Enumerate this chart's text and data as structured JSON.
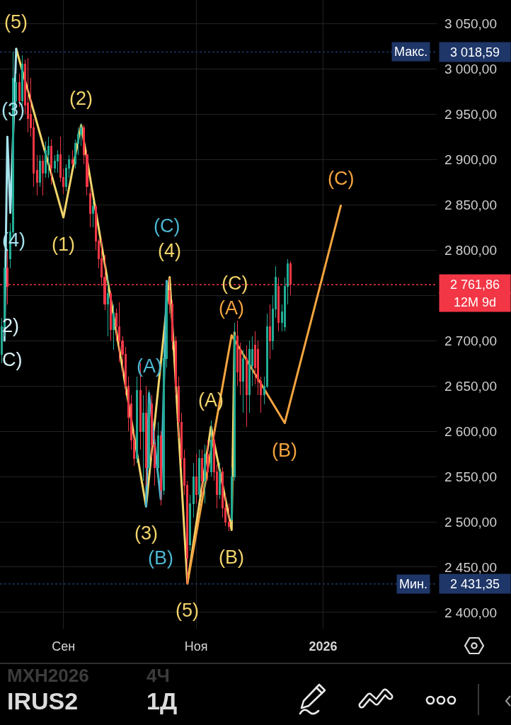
{
  "chart_data": {
    "type": "candlestick",
    "categories": [
      null,
      null,
      null,
      null,
      null,
      null,
      null,
      null,
      null,
      null,
      null,
      null,
      null,
      null,
      null,
      null,
      null,
      null,
      null,
      null,
      null,
      "Сен",
      null,
      null,
      null,
      null,
      null,
      null,
      null,
      null,
      null,
      null,
      null,
      null,
      null,
      null,
      null,
      null,
      null,
      null,
      null,
      null,
      null,
      null,
      null,
      null,
      null,
      null,
      null,
      null,
      null,
      null,
      null,
      null,
      null,
      null,
      null,
      null,
      null,
      null,
      null,
      null,
      null,
      null,
      null,
      null,
      "Ноя",
      null,
      null,
      null,
      null,
      null,
      null,
      null,
      null,
      null,
      null,
      null,
      null,
      null,
      null,
      null,
      null,
      null,
      null,
      null,
      null,
      null,
      null,
      null,
      null,
      null,
      null,
      null,
      null,
      null,
      null,
      null,
      null,
      null,
      null,
      null,
      null,
      null,
      null,
      null,
      null,
      null,
      null,
      "2026",
      null,
      null,
      null,
      null,
      null,
      null,
      null,
      null,
      null,
      null,
      null,
      null,
      null,
      null,
      null,
      null,
      null,
      null,
      null,
      null,
      null,
      null,
      null,
      null,
      null,
      null,
      null,
      null,
      null,
      null,
      null,
      null,
      null,
      null,
      null,
      null,
      null,
      null
    ],
    "ohlc": [
      [
        2685,
        2725,
        2675,
        2715
      ],
      [
        2715,
        2790,
        2705,
        2780
      ],
      [
        2780,
        2800,
        2740,
        2760
      ],
      [
        2790,
        2830,
        2780,
        2820
      ],
      [
        2820,
        3018.59,
        2815,
        2990
      ],
      [
        2965,
        2995,
        2955,
        2985
      ],
      [
        2985,
        2995,
        2958,
        2965
      ],
      [
        2965,
        3015,
        2960,
        3005
      ],
      [
        3005,
        3010,
        2950,
        2960
      ],
      [
        2962,
        3012,
        2930,
        2945
      ],
      [
        2950,
        2990,
        2925,
        2935
      ],
      [
        2935,
        2945,
        2870,
        2885
      ],
      [
        2888,
        2905,
        2860,
        2875
      ],
      [
        2875,
        2905,
        2870,
        2898
      ],
      [
        2898,
        2905,
        2860,
        2885
      ],
      [
        2885,
        2920,
        2880,
        2910
      ],
      [
        2905,
        2925,
        2880,
        2915
      ],
      [
        2915,
        2922,
        2872,
        2890
      ],
      [
        2890,
        2905,
        2885,
        2898
      ],
      [
        2898,
        2910,
        2885,
        2905
      ],
      [
        2905,
        2925,
        2875,
        2880
      ],
      [
        2880,
        2890,
        2862,
        2870
      ],
      [
        2870,
        2895,
        2865,
        2890
      ],
      [
        2890,
        2905,
        2880,
        2900
      ],
      [
        2900,
        2910,
        2893,
        2895
      ],
      [
        2895,
        2922,
        2890,
        2918
      ],
      [
        2918,
        2935,
        2905,
        2928
      ],
      [
        2928,
        2940,
        2915,
        2935
      ],
      [
        2935,
        2938,
        2895,
        2905
      ],
      [
        2905,
        2910,
        2860,
        2870
      ],
      [
        2862,
        2868,
        2825,
        2840
      ],
      [
        2840,
        2855,
        2825,
        2848
      ],
      [
        2848,
        2850,
        2800,
        2810
      ],
      [
        2810,
        2812,
        2780,
        2790
      ],
      [
        2790,
        2812,
        2760,
        2770
      ],
      [
        2770,
        2795,
        2734,
        2740
      ],
      [
        2740,
        2772,
        2705,
        2752
      ],
      [
        2752,
        2755,
        2700,
        2712
      ],
      [
        2712,
        2740,
        2690,
        2730
      ],
      [
        2730,
        2735,
        2700,
        2715
      ],
      [
        2715,
        2742,
        2676,
        2700
      ],
      [
        2700,
        2705,
        2662,
        2685
      ],
      [
        2685,
        2693,
        2640,
        2650
      ],
      [
        2650,
        2660,
        2600,
        2615
      ],
      [
        2630,
        2640,
        2580,
        2590
      ],
      [
        2590,
        2600,
        2562,
        2570
      ],
      [
        2570,
        2660,
        2565,
        2645
      ],
      [
        2645,
        2675,
        2580,
        2600
      ],
      [
        2600,
        2640,
        2545,
        2620
      ],
      [
        2620,
        2650,
        2540,
        2560
      ],
      [
        2560,
        2645,
        2557,
        2630
      ],
      [
        2630,
        2640,
        2570,
        2585
      ],
      [
        2585,
        2600,
        2540,
        2560
      ],
      [
        2560,
        2610,
        2545,
        2595
      ],
      [
        2595,
        2600,
        2518,
        2535
      ],
      [
        2535,
        2690,
        2530,
        2680
      ],
      [
        2680,
        2765,
        2670,
        2755
      ],
      [
        2755,
        2769,
        2730,
        2740
      ],
      [
        2740,
        2745,
        2690,
        2700
      ],
      [
        2700,
        2705,
        2640,
        2650
      ],
      [
        2650,
        2660,
        2592,
        2610
      ],
      [
        2610,
        2620,
        2560,
        2570
      ],
      [
        2570,
        2580,
        2530,
        2540
      ],
      [
        2540,
        2545,
        2431.35,
        2460
      ],
      [
        2475,
        2530,
        2468,
        2520
      ],
      [
        2520,
        2565,
        2505,
        2550
      ],
      [
        2550,
        2575,
        2520,
        2530
      ],
      [
        2530,
        2580,
        2526,
        2570
      ],
      [
        2570,
        2580,
        2530,
        2545
      ],
      [
        2545,
        2585,
        2520,
        2575
      ],
      [
        2575,
        2590,
        2545,
        2555
      ],
      [
        2555,
        2612,
        2550,
        2590
      ],
      [
        2590,
        2600,
        2545,
        2555
      ],
      [
        2555,
        2563,
        2515,
        2530
      ],
      [
        2530,
        2565,
        2525,
        2555
      ],
      [
        2555,
        2560,
        2505,
        2515
      ],
      [
        2515,
        2530,
        2495,
        2500
      ],
      [
        2500,
        2520,
        2490,
        2495
      ],
      [
        2503,
        2560,
        2500,
        2550
      ],
      [
        2550,
        2720,
        2545,
        2705
      ],
      [
        2705,
        2722,
        2650,
        2665
      ],
      [
        2690,
        2698,
        2640,
        2655
      ],
      [
        2655,
        2690,
        2620,
        2680
      ],
      [
        2680,
        2695,
        2605,
        2640
      ],
      [
        2640,
        2700,
        2620,
        2690
      ],
      [
        2672,
        2705,
        2650,
        2690
      ],
      [
        2695,
        2710,
        2652,
        2670
      ],
      [
        2690,
        2700,
        2640,
        2655
      ],
      [
        2655,
        2660,
        2620,
        2640
      ],
      [
        2640,
        2660,
        2630,
        2650
      ],
      [
        2650,
        2730,
        2648,
        2715
      ],
      [
        2715,
        2740,
        2680,
        2700
      ],
      [
        2700,
        2750,
        2690,
        2735
      ],
      [
        2735,
        2782,
        2725,
        2770
      ],
      [
        2760,
        2770,
        2710,
        2720
      ],
      [
        2720,
        2740,
        2710,
        2732
      ],
      [
        2715,
        2770,
        2710,
        2760
      ],
      [
        2760,
        2790,
        2740,
        2785
      ],
      [
        2785,
        2788,
        2750,
        2761.86
      ],
      null,
      null,
      null,
      null,
      null,
      null,
      null,
      null,
      null,
      null,
      null,
      null,
      null,
      null,
      null,
      null,
      null,
      null,
      null,
      null,
      null,
      null,
      null,
      null,
      null,
      null,
      null,
      null,
      null,
      null,
      null,
      null,
      null,
      null,
      null,
      null,
      null,
      null,
      null,
      null,
      null,
      null,
      null,
      null,
      null,
      null,
      null,
      null,
      null
    ],
    "ylim": [
      2382,
      3076
    ],
    "yticks": [
      {
        "value": 2400,
        "label": "2 400,00"
      },
      {
        "value": 2450,
        "label": "2 450,00"
      },
      {
        "value": 2500,
        "label": "2 500,00"
      },
      {
        "value": 2550,
        "label": "2 550,00"
      },
      {
        "value": 2600,
        "label": "2 600,00"
      },
      {
        "value": 2650,
        "label": "2 650,00"
      },
      {
        "value": 2700,
        "label": "2 700,00"
      },
      {
        "value": 2750,
        "label": null
      },
      {
        "value": 2800,
        "label": "2 800,00"
      },
      {
        "value": 2850,
        "label": "2 850,00"
      },
      {
        "value": 2900,
        "label": "2 900,00"
      },
      {
        "value": 2950,
        "label": "2 950,00"
      },
      {
        "value": 3000,
        "label": "3 000,00"
      },
      {
        "value": 3050,
        "label": "3 050,00"
      }
    ],
    "grid": true,
    "series": [
      {
        "type": "line",
        "color": "#f2d46b",
        "values": [
          null,
          null,
          null,
          null,
          null,
          3022,
          null,
          null,
          null,
          null,
          null,
          null,
          null,
          null,
          null,
          null,
          null,
          null,
          null,
          null,
          null,
          2836,
          null,
          null,
          null,
          null,
          null,
          2938,
          null,
          null,
          null,
          null,
          null,
          null,
          null,
          null,
          null,
          null,
          null,
          null,
          null,
          null,
          null,
          null,
          null,
          null,
          null,
          null,
          null,
          2517,
          null,
          null,
          null,
          null,
          null,
          null,
          null,
          2770,
          null,
          null,
          null,
          null,
          null,
          2432,
          null,
          null,
          null,
          null,
          null,
          null,
          null,
          2605,
          null,
          null,
          null,
          null,
          null,
          null,
          2491,
          2709,
          null,
          null,
          null,
          null,
          null,
          null,
          null,
          null,
          null,
          null,
          null,
          null,
          null,
          null,
          null,
          null,
          null,
          null,
          null,
          null,
          null,
          null,
          null,
          null,
          null,
          null,
          null,
          null,
          null,
          null,
          null,
          null,
          null,
          null,
          null,
          null,
          null,
          null,
          null,
          null,
          null,
          null,
          null,
          null,
          null,
          null,
          null,
          null,
          null,
          null,
          null,
          null,
          null,
          null,
          null,
          null,
          null,
          null,
          null,
          null,
          null,
          null,
          null,
          null,
          null,
          null,
          null,
          null
        ]
      },
      {
        "type": "line",
        "color": "#f4a43f",
        "values": [
          null,
          null,
          null,
          null,
          null,
          null,
          null,
          null,
          null,
          null,
          null,
          null,
          null,
          null,
          null,
          null,
          null,
          null,
          null,
          null,
          null,
          null,
          null,
          null,
          null,
          null,
          null,
          null,
          null,
          null,
          null,
          null,
          null,
          null,
          null,
          null,
          null,
          null,
          null,
          null,
          null,
          null,
          null,
          null,
          null,
          null,
          null,
          null,
          null,
          null,
          null,
          null,
          null,
          null,
          null,
          null,
          null,
          null,
          null,
          null,
          null,
          null,
          null,
          2432,
          null,
          null,
          null,
          null,
          null,
          null,
          null,
          null,
          null,
          null,
          null,
          null,
          null,
          null,
          2706,
          null,
          null,
          null,
          null,
          null,
          null,
          null,
          null,
          null,
          null,
          null,
          null,
          null,
          null,
          null,
          null,
          null,
          2609,
          null,
          null,
          null,
          null,
          null,
          null,
          null,
          null,
          null,
          null,
          null,
          null,
          null,
          null,
          null,
          null,
          null,
          null,
          2849,
          null,
          null,
          null,
          null,
          null,
          null,
          null,
          null,
          null,
          null,
          null,
          null,
          null,
          null,
          null,
          null,
          null,
          null,
          null,
          null,
          null,
          null,
          null,
          null,
          null,
          null,
          null,
          null,
          null,
          null,
          null,
          null
        ]
      },
      {
        "type": "line",
        "color": "#4db6d0",
        "values": [
          null,
          null,
          null,
          null,
          null,
          null,
          null,
          null,
          null,
          null,
          null,
          null,
          null,
          null,
          null,
          null,
          null,
          null,
          null,
          null,
          null,
          null,
          null,
          null,
          null,
          null,
          null,
          null,
          null,
          null,
          null,
          null,
          null,
          null,
          null,
          null,
          null,
          null,
          null,
          null,
          null,
          null,
          null,
          null,
          null,
          null,
          null,
          null,
          null,
          2517,
          2642,
          null,
          null,
          null,
          2525,
          null,
          2766,
          null,
          null,
          null,
          null,
          null,
          null,
          null,
          null,
          null,
          null,
          null,
          null,
          null,
          null,
          null,
          null,
          null,
          null,
          null,
          null,
          null,
          null,
          null,
          null,
          null,
          null,
          null,
          null,
          null,
          null,
          null,
          null,
          null,
          null,
          null,
          null,
          null,
          null,
          null,
          null,
          null,
          null,
          null,
          null,
          null,
          null,
          null,
          null,
          null,
          null,
          null,
          null,
          null,
          null,
          null,
          null,
          null,
          null,
          null,
          null,
          null,
          null,
          null,
          null,
          null,
          null,
          null,
          null,
          null,
          null,
          null,
          null,
          null,
          null,
          null,
          null,
          null,
          null,
          null,
          null,
          null,
          null,
          null,
          null,
          null,
          null,
          null,
          null,
          null,
          null,
          null
        ]
      },
      {
        "type": "line",
        "color": "#a6e3ee",
        "values": [
          null,
          2700,
          2925,
          2841,
          null,
          3022,
          null,
          null,
          null,
          null,
          null,
          null,
          null,
          null,
          null,
          null,
          null,
          null,
          null,
          null,
          null,
          null,
          null,
          null,
          null,
          null,
          null,
          null,
          null,
          null,
          null,
          null,
          null,
          null,
          null,
          null,
          null,
          null,
          null,
          null,
          null,
          null,
          null,
          null,
          null,
          null,
          null,
          null,
          null,
          null,
          null,
          null,
          null,
          null,
          null,
          null,
          null,
          null,
          null,
          null,
          null,
          null,
          null,
          null,
          null,
          null,
          null,
          null,
          null,
          null,
          null,
          null,
          null,
          null,
          null,
          null,
          null,
          null,
          null,
          null,
          null,
          null,
          null,
          null,
          null,
          null,
          null,
          null,
          null,
          null,
          null,
          null,
          null,
          null,
          null,
          null,
          null,
          null,
          null,
          null,
          null,
          null,
          null,
          null,
          null,
          null,
          null,
          null,
          null,
          null,
          null,
          null,
          null,
          null,
          null,
          null,
          null,
          null,
          null,
          null,
          null,
          null,
          null,
          null,
          null,
          null,
          null,
          null,
          null,
          null,
          null,
          null,
          null,
          null,
          null,
          null,
          null,
          null,
          null,
          null,
          null,
          null,
          null,
          null,
          null,
          null,
          null,
          null
        ]
      }
    ],
    "ref_lines": [
      {
        "axis": "y",
        "value": 3018.59,
        "label": "Макс.",
        "color": "#1e3668",
        "line_style": "dotted"
      },
      {
        "axis": "y",
        "value": 2761.86,
        "label": "12M 9d",
        "color": "#f23645",
        "line_style": "dotted"
      },
      {
        "axis": "y",
        "value": 2431.35,
        "label": "Мин.",
        "color": "#1e3668",
        "line_style": "dotted"
      }
    ],
    "annotations": [
      {
        "text": "(3)",
        "y": 2925
      },
      {
        "text": "(4)",
        "y": 2841
      },
      {
        "text": "(5)",
        "y": 3022
      },
      {
        "text": "(1)",
        "y": 2836
      },
      {
        "text": "(2)",
        "y": 2938
      },
      {
        "text": "(3)",
        "y": 2517
      },
      {
        "text": "(A)",
        "y": 2642
      },
      {
        "text": "(B)",
        "y": 2525
      },
      {
        "text": "(4)",
        "y": 2770
      },
      {
        "text": "(C)",
        "y": 2766
      },
      {
        "text": "(5)",
        "y": 2432
      },
      {
        "text": "(A)",
        "y": 2605
      },
      {
        "text": "(B)",
        "y": 2491
      },
      {
        "text": "(A)",
        "y": 2706
      },
      {
        "text": "(C)",
        "y": 2709
      },
      {
        "text": "(B)",
        "y": 2609
      },
      {
        "text": "(C)",
        "y": 2849
      },
      "3 018,59",
      "2 761,86",
      "2 431,35",
      "2)",
      "C)",
      "MXH2026",
      "4Ч",
      "IRUS2",
      "1Д"
    ]
  }
}
